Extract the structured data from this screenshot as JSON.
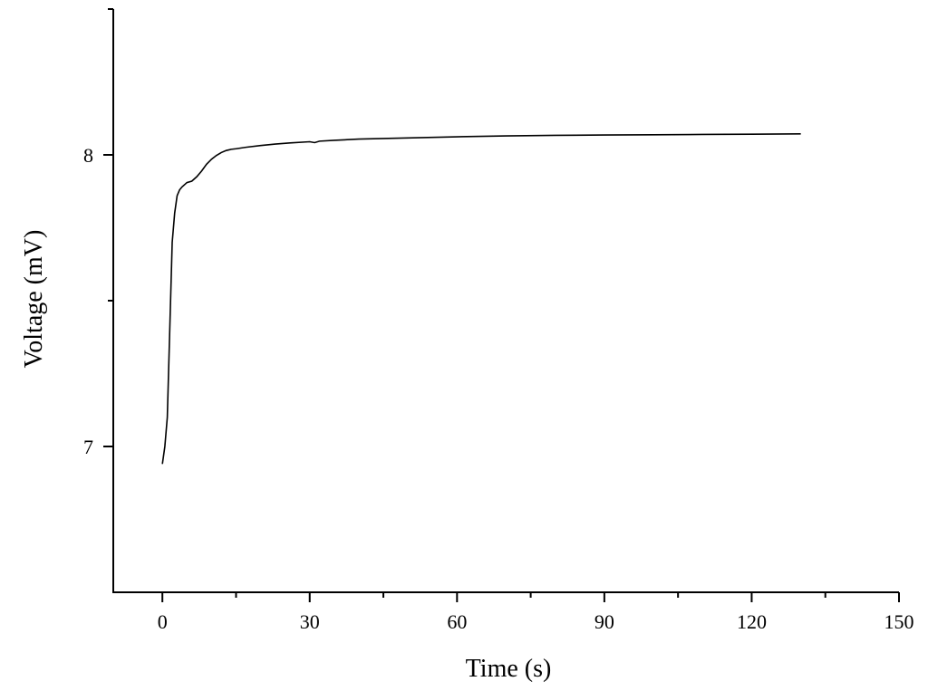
{
  "chart_data": {
    "type": "line",
    "title": "",
    "xlabel": "Time (s)",
    "ylabel": "Voltage (mV)",
    "xlim": [
      -10,
      150
    ],
    "ylim": [
      6.5,
      8.5
    ],
    "x_ticks": [
      0,
      30,
      60,
      90,
      120,
      150
    ],
    "x_tick_labels": [
      "0",
      "30",
      "60",
      "90",
      "120",
      "150"
    ],
    "x_minor_ticks": [
      15,
      45,
      75,
      105,
      135
    ],
    "y_ticks": [
      7,
      8
    ],
    "y_tick_labels": [
      "7",
      "8"
    ],
    "y_minor_ticks": [
      7.5
    ],
    "grid": false,
    "legend": "none",
    "line_color": "#000000",
    "series": [
      {
        "x": [
          0,
          0.5,
          1,
          1.5,
          2,
          2.5,
          3,
          3.5,
          4,
          5,
          6,
          7,
          8,
          9,
          10,
          11,
          12,
          13,
          14,
          15,
          17,
          20,
          23,
          26,
          30,
          31,
          32,
          35,
          40,
          50,
          60,
          70,
          80,
          90,
          100,
          110,
          120,
          130
        ],
        "values": [
          6.94,
          7.0,
          7.1,
          7.4,
          7.7,
          7.8,
          7.86,
          7.88,
          7.89,
          7.905,
          7.91,
          7.925,
          7.945,
          7.968,
          7.985,
          7.998,
          8.008,
          8.015,
          8.019,
          8.021,
          8.026,
          8.032,
          8.037,
          8.041,
          8.045,
          8.042,
          8.047,
          8.05,
          8.054,
          8.058,
          8.062,
          8.065,
          8.067,
          8.068,
          8.069,
          8.07,
          8.071,
          8.072
        ]
      }
    ]
  }
}
